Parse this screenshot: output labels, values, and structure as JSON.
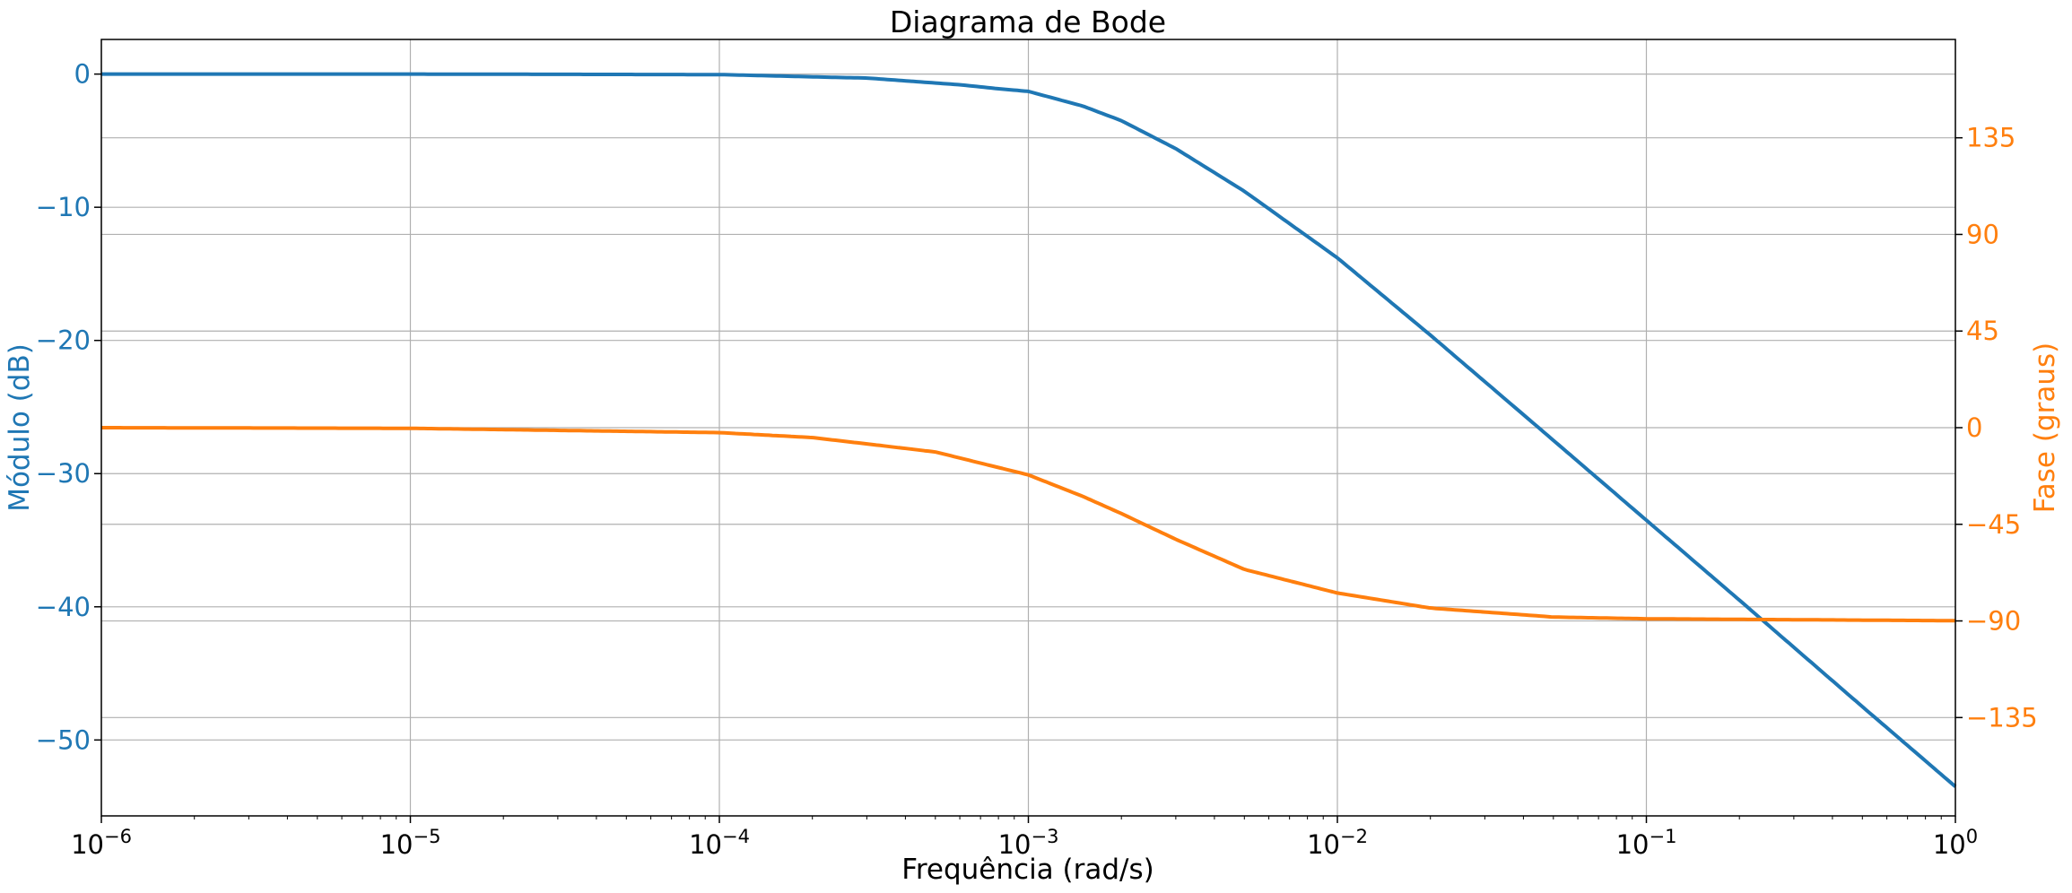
{
  "chart_data": {
    "type": "line",
    "title": "Diagrama de Bode",
    "xlabel": "Frequência (rad/s)",
    "ylabel_left": "Módulo (dB)",
    "ylabel_right": "Fase (graus)",
    "x_scale": "log",
    "xlim": [
      1e-06,
      1
    ],
    "ylim_left": [
      -55.7,
      2.6
    ],
    "ylim_right": [
      -180.8,
      180.8
    ],
    "grid": true,
    "x_tick_base": "10",
    "x_tick_exponents": [
      "−6",
      "−5",
      "−4",
      "−3",
      "−2",
      "−1",
      "0"
    ],
    "x_ticks": [
      1e-06,
      1e-05,
      0.0001,
      0.001,
      0.01,
      0.1,
      1
    ],
    "y_ticks_left": [
      0,
      -10,
      -20,
      -30,
      -40,
      -50
    ],
    "y_tick_labels_left": [
      "0",
      "−10",
      "−20",
      "−30",
      "−40",
      "−50"
    ],
    "y_ticks_right": [
      135,
      90,
      45,
      0,
      -45,
      -90,
      -135
    ],
    "y_tick_labels_right": [
      "135",
      "90",
      "45",
      "0",
      "−45",
      "−90",
      "−135"
    ],
    "colors": {
      "magnitude": "#1f77b4",
      "phase": "#ff7f0e",
      "grid": "#b0b0b0"
    },
    "series": [
      {
        "axis": "left",
        "x": [
          1e-06,
          1e-05,
          0.0001,
          0.0003,
          0.0006,
          0.0008,
          0.001,
          0.0015,
          0.002,
          0.003,
          0.005,
          0.01,
          0.02,
          0.05,
          0.1,
          0.2,
          0.5,
          1
        ],
        "values": [
          0,
          0,
          -0.04,
          -0.3,
          -0.8,
          -1.1,
          -1.3,
          -2.4,
          -3.5,
          -5.6,
          -8.8,
          -13.8,
          -19.6,
          -27.5,
          -33.5,
          -39.5,
          -47.5,
          -53.5
        ]
      },
      {
        "axis": "right",
        "x": [
          1e-06,
          1e-05,
          0.0001,
          0.0002,
          0.0005,
          0.001,
          0.0015,
          0.002,
          0.003,
          0.005,
          0.01,
          0.02,
          0.05,
          0.1,
          1
        ],
        "values": [
          0,
          -0.3,
          -2.3,
          -4.6,
          -11.3,
          -22,
          -32,
          -40,
          -52,
          -66,
          -77,
          -84,
          -88.2,
          -89,
          -89.9
        ]
      }
    ]
  }
}
